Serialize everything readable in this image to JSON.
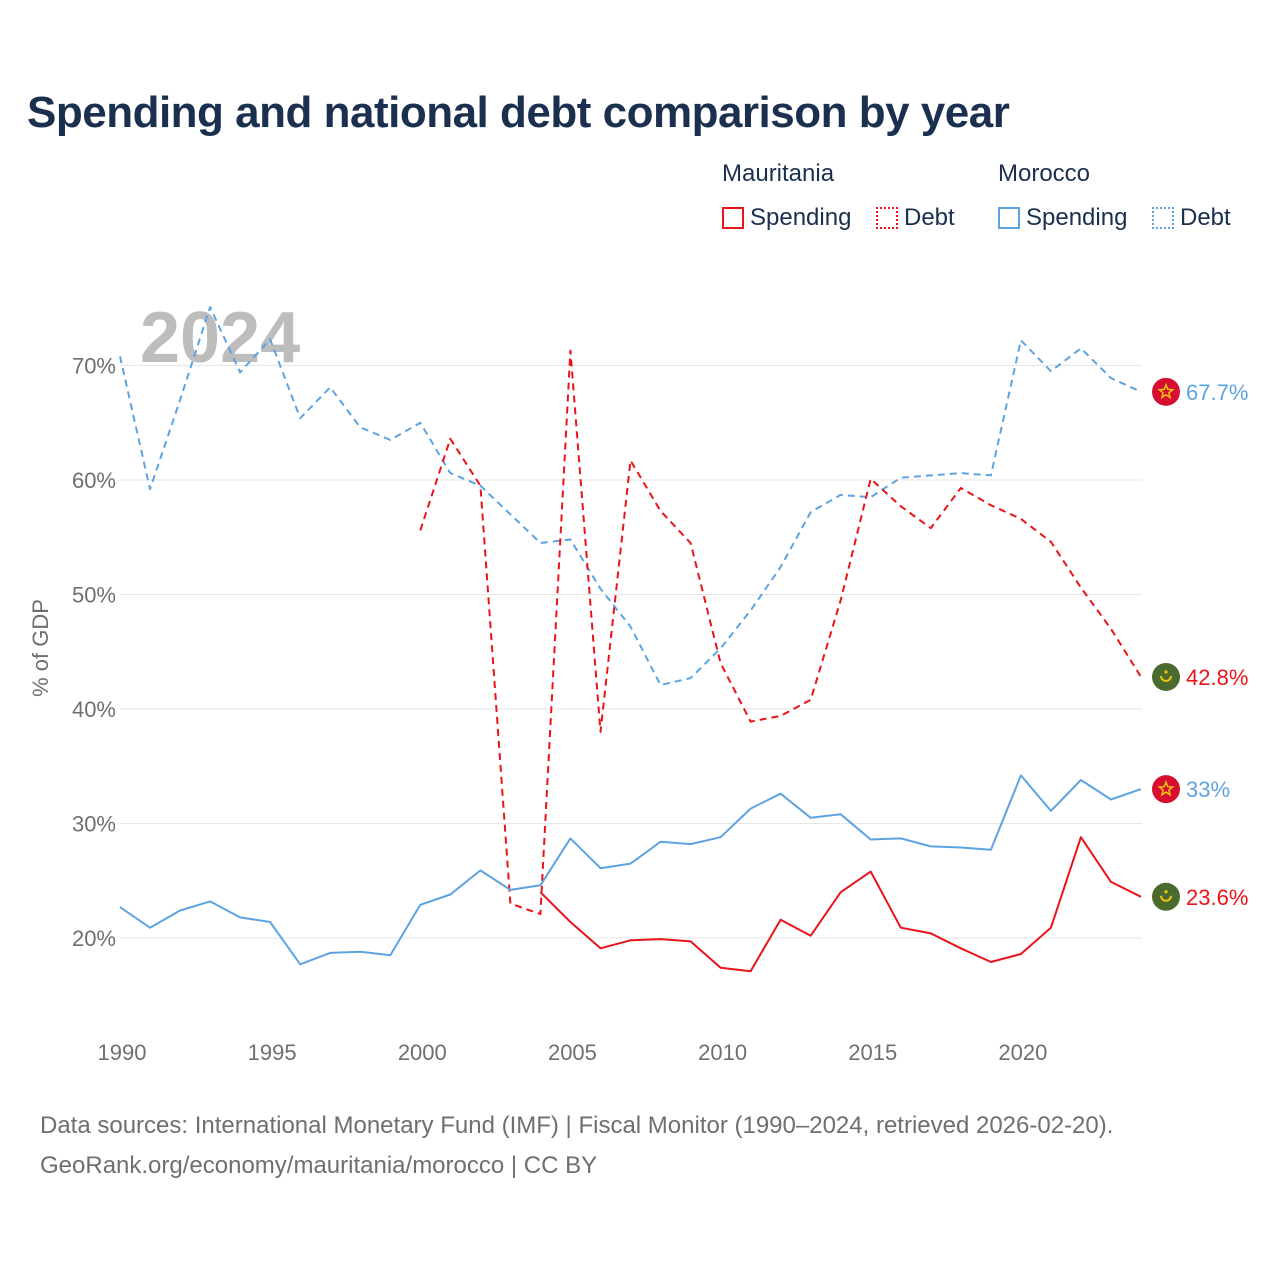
{
  "title": "Spending and national debt comparison by year",
  "legend": {
    "groups": [
      {
        "name": "Mauritania",
        "color": "#e8141a",
        "items": [
          {
            "label": "Spending",
            "style": "solid"
          },
          {
            "label": "Debt",
            "style": "dotted"
          }
        ]
      },
      {
        "name": "Morocco",
        "color": "#5ea3e1",
        "items": [
          {
            "label": "Spending",
            "style": "solid"
          },
          {
            "label": "Debt",
            "style": "dotted"
          }
        ]
      }
    ]
  },
  "chart_data": {
    "type": "line",
    "year_label": "2024",
    "ylabel": "% of GDP",
    "xlabel": "",
    "xlim": [
      1990,
      2024
    ],
    "ylim": [
      13,
      77
    ],
    "x_ticks": [
      1990,
      1995,
      2000,
      2005,
      2010,
      2015,
      2020
    ],
    "y_ticks": [
      20,
      30,
      40,
      50,
      60,
      70
    ],
    "y_tick_labels": [
      "20%",
      "30%",
      "40%",
      "50%",
      "60%",
      "70%"
    ],
    "series": [
      {
        "name": "Morocco Debt",
        "country": "Morocco",
        "metric": "Debt",
        "color": "#5ea3e1",
        "dashed": true,
        "x": [
          1990,
          1991,
          1992,
          1993,
          1994,
          1995,
          1996,
          1997,
          1998,
          1999,
          2000,
          2001,
          2002,
          2003,
          2004,
          2005,
          2006,
          2007,
          2008,
          2009,
          2010,
          2011,
          2012,
          2013,
          2014,
          2015,
          2016,
          2017,
          2018,
          2019,
          2020,
          2021,
          2022,
          2023,
          2024
        ],
        "values": [
          70.8,
          59.2,
          67.0,
          75.1,
          69.4,
          72.3,
          65.4,
          68.1,
          64.6,
          63.5,
          65.0,
          60.6,
          59.5,
          57.0,
          54.5,
          54.8,
          50.5,
          47.2,
          42.1,
          42.7,
          45.3,
          48.6,
          52.4,
          57.2,
          58.7,
          58.5,
          60.2,
          60.4,
          60.6,
          60.4,
          72.2,
          69.5,
          71.5,
          68.9,
          67.7
        ],
        "end_label": "67.7%",
        "flag": "morocco"
      },
      {
        "name": "Mauritania Debt",
        "country": "Mauritania",
        "metric": "Debt",
        "color": "#e8141a",
        "dashed": true,
        "x": [
          2000,
          2001,
          2002,
          2003,
          2004,
          2005,
          2006,
          2007,
          2008,
          2009,
          2010,
          2011,
          2012,
          2013,
          2014,
          2015,
          2016,
          2017,
          2018,
          2019,
          2020,
          2021,
          2022,
          2023,
          2024
        ],
        "values": [
          55.6,
          63.6,
          59.5,
          23.0,
          22.1,
          71.3,
          38.0,
          61.7,
          57.3,
          54.5,
          44.0,
          38.9,
          39.4,
          40.8,
          49.5,
          60.1,
          57.7,
          55.8,
          59.3,
          57.8,
          56.6,
          54.6,
          50.6,
          47.0,
          42.8
        ],
        "end_label": "42.8%",
        "flag": "mauritania"
      },
      {
        "name": "Morocco Spending",
        "country": "Morocco",
        "metric": "Spending",
        "color": "#5ea3e1",
        "dashed": false,
        "x": [
          1990,
          1991,
          1992,
          1993,
          1994,
          1995,
          1996,
          1997,
          1998,
          1999,
          2000,
          2001,
          2002,
          2003,
          2004,
          2005,
          2006,
          2007,
          2008,
          2009,
          2010,
          2011,
          2012,
          2013,
          2014,
          2015,
          2016,
          2017,
          2018,
          2019,
          2020,
          2021,
          2022,
          2023,
          2024
        ],
        "values": [
          22.7,
          20.9,
          22.4,
          23.2,
          21.8,
          21.4,
          17.7,
          18.7,
          18.8,
          18.5,
          22.9,
          23.8,
          25.9,
          24.2,
          24.6,
          28.7,
          26.1,
          26.5,
          28.4,
          28.2,
          28.8,
          31.3,
          32.6,
          30.5,
          30.8,
          28.6,
          28.7,
          28.0,
          27.9,
          27.7,
          34.2,
          31.1,
          33.8,
          32.1,
          33.0
        ],
        "end_label": "33%",
        "flag": "morocco"
      },
      {
        "name": "Mauritania Spending",
        "country": "Mauritania",
        "metric": "Spending",
        "color": "#e8141a",
        "dashed": false,
        "x": [
          2004,
          2005,
          2006,
          2007,
          2008,
          2009,
          2010,
          2011,
          2012,
          2013,
          2014,
          2015,
          2016,
          2017,
          2018,
          2019,
          2020,
          2021,
          2022,
          2023,
          2024
        ],
        "values": [
          24.0,
          21.4,
          19.1,
          19.8,
          19.9,
          19.7,
          17.4,
          17.1,
          21.6,
          20.2,
          24.0,
          25.8,
          20.9,
          20.4,
          19.1,
          17.9,
          18.6,
          20.9,
          28.8,
          24.9,
          23.6
        ],
        "end_label": "23.6%",
        "flag": "mauritania"
      }
    ]
  },
  "footer": {
    "sources": "Data sources: International Monetary Fund (IMF) | Fiscal Monitor (1990–2024, retrieved 2026-02-20).",
    "credit": "GeoRank.org/economy/mauritania/morocco | CC BY"
  }
}
